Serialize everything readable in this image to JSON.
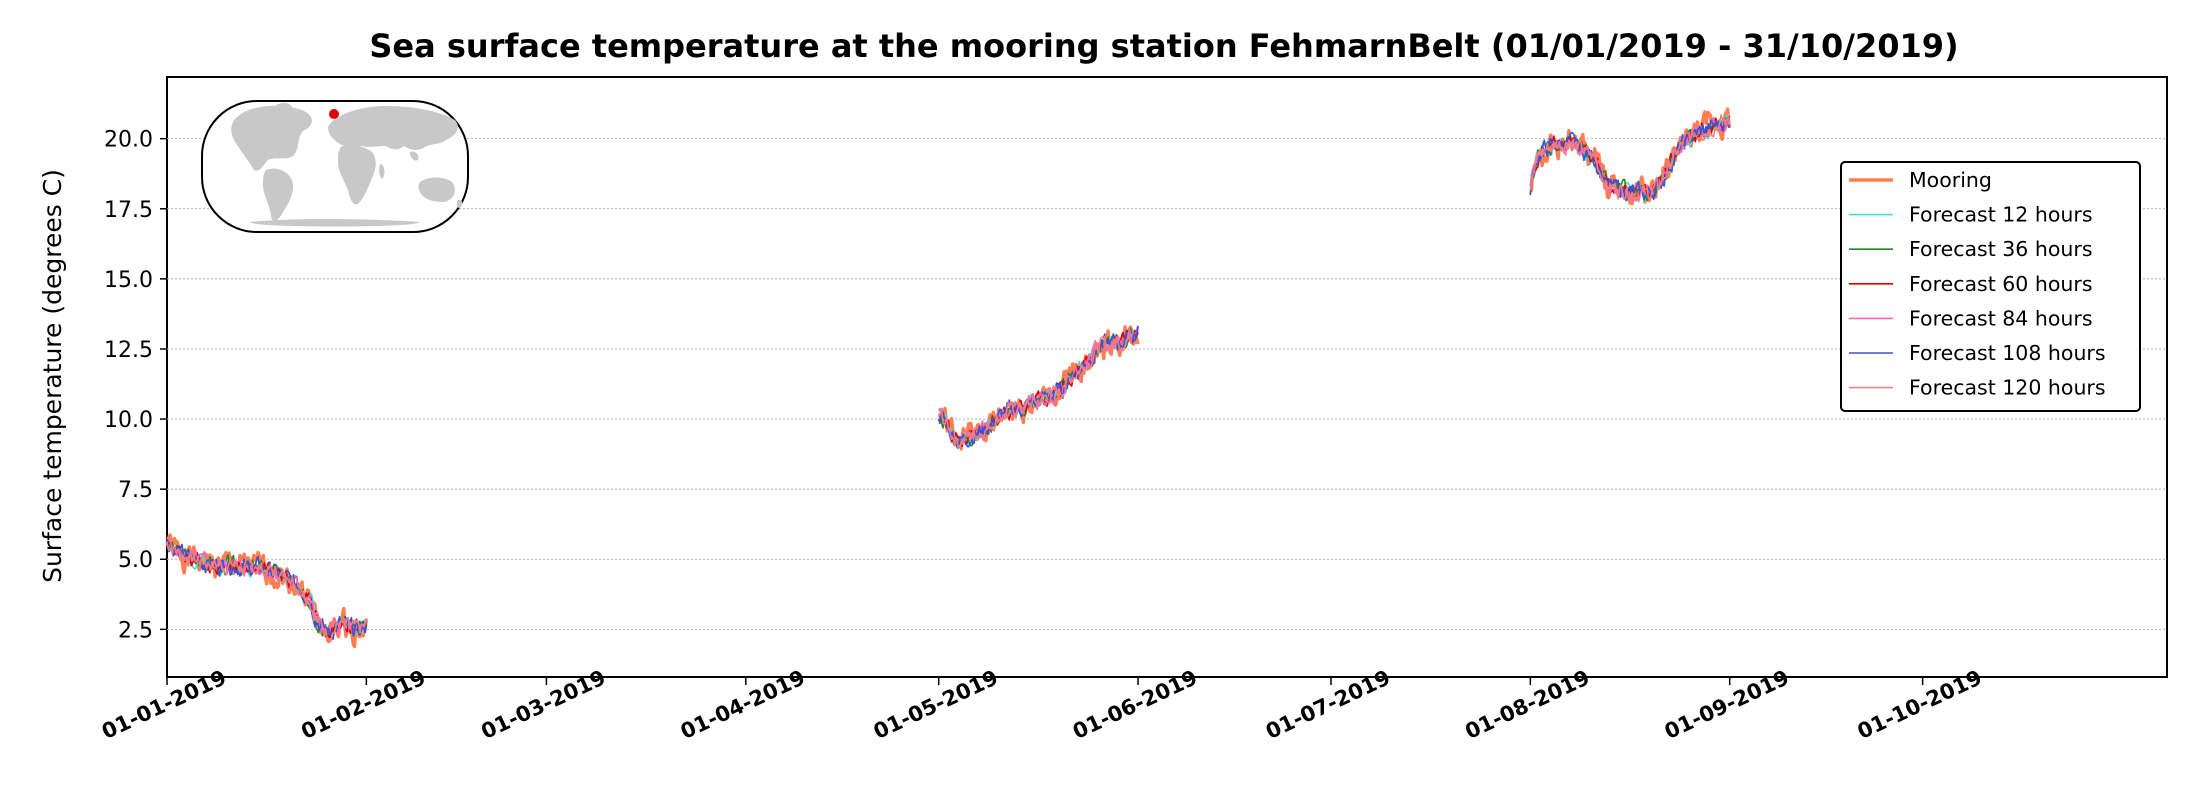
{
  "chart_data": {
    "type": "line",
    "title": "Sea surface temperature at the mooring station FehmarnBelt (01/01/2019 - 31/10/2019)",
    "xlabel": "",
    "ylabel": "Surface temperature (degrees C)",
    "xlim": [
      "2019-01-01",
      "2019-11-08"
    ],
    "ylim": [
      0.8,
      22.2
    ],
    "yticks": [
      2.5,
      5.0,
      7.5,
      10.0,
      12.5,
      15.0,
      17.5,
      20.0
    ],
    "ytick_labels": [
      "2.5",
      "5.0",
      "7.5",
      "10.0",
      "12.5",
      "15.0",
      "17.5",
      "20.0"
    ],
    "xticks": [
      "2019-01-01",
      "2019-02-01",
      "2019-03-01",
      "2019-04-01",
      "2019-05-01",
      "2019-06-01",
      "2019-07-01",
      "2019-08-01",
      "2019-09-01",
      "2019-10-01"
    ],
    "xtick_labels": [
      "01-01-2019",
      "01-02-2019",
      "01-03-2019",
      "01-04-2019",
      "01-05-2019",
      "01-06-2019",
      "01-07-2019",
      "01-08-2019",
      "01-09-2019",
      "01-10-2019"
    ],
    "grid": "horizontal dotted",
    "legend_position": "right",
    "segments": [
      {
        "dates": [
          "2019-01-01",
          "2019-01-03",
          "2019-01-05",
          "2019-01-07",
          "2019-01-09",
          "2019-01-11",
          "2019-01-13",
          "2019-01-15",
          "2019-01-17",
          "2019-01-19",
          "2019-01-21",
          "2019-01-23",
          "2019-01-24",
          "2019-01-25",
          "2019-01-26",
          "2019-01-27",
          "2019-01-28",
          "2019-01-29",
          "2019-01-30",
          "2019-01-31",
          "2019-02-01"
        ],
        "base": [
          5.6,
          5.2,
          5.0,
          4.9,
          4.8,
          4.8,
          4.7,
          4.7,
          4.6,
          4.4,
          4.1,
          3.7,
          3.0,
          2.6,
          2.4,
          2.5,
          2.7,
          2.6,
          2.5,
          2.5,
          2.6
        ]
      },
      {
        "dates": [
          "2019-05-01",
          "2019-05-02",
          "2019-05-03",
          "2019-05-04",
          "2019-05-06",
          "2019-05-08",
          "2019-05-10",
          "2019-05-12",
          "2019-05-14",
          "2019-05-16",
          "2019-05-18",
          "2019-05-20",
          "2019-05-22",
          "2019-05-24",
          "2019-05-26",
          "2019-05-28",
          "2019-05-30",
          "2019-06-01"
        ],
        "base": [
          10.2,
          9.9,
          9.5,
          9.2,
          9.4,
          9.6,
          10.0,
          10.3,
          10.4,
          10.6,
          10.8,
          11.0,
          11.6,
          12.0,
          12.6,
          12.7,
          12.8,
          13.1
        ]
      },
      {
        "dates": [
          "2019-08-01",
          "2019-08-02",
          "2019-08-03",
          "2019-08-05",
          "2019-08-07",
          "2019-08-09",
          "2019-08-11",
          "2019-08-12",
          "2019-08-13",
          "2019-08-15",
          "2019-08-17",
          "2019-08-19",
          "2019-08-21",
          "2019-08-23",
          "2019-08-25",
          "2019-08-27",
          "2019-08-29",
          "2019-08-31",
          "2019-09-01"
        ],
        "base": [
          18.2,
          19.3,
          19.6,
          19.8,
          19.9,
          19.6,
          19.3,
          18.8,
          18.3,
          18.2,
          18.1,
          18.0,
          18.3,
          19.2,
          19.9,
          20.2,
          20.4,
          20.6,
          20.6
        ]
      }
    ],
    "series": [
      {
        "name": "Mooring",
        "color": "#ff7f50",
        "width": 3.4,
        "amp": 0.38,
        "seed": 1
      },
      {
        "name": "Forecast 12 hours",
        "color": "#40e0d0",
        "width": 1.6,
        "amp": 0.22,
        "seed": 2
      },
      {
        "name": "Forecast 36 hours",
        "color": "#228b22",
        "width": 1.6,
        "amp": 0.22,
        "seed": 3
      },
      {
        "name": "Forecast 60 hours",
        "color": "#e00000",
        "width": 1.6,
        "amp": 0.22,
        "seed": 4
      },
      {
        "name": "Forecast 84 hours",
        "color": "#ff69b4",
        "width": 1.6,
        "amp": 0.24,
        "seed": 5
      },
      {
        "name": "Forecast 108 hours",
        "color": "#3f4fd8",
        "width": 1.6,
        "amp": 0.26,
        "seed": 6
      },
      {
        "name": "Forecast 120 hours",
        "color": "#f08080",
        "width": 1.6,
        "amp": 0.24,
        "seed": 7
      }
    ],
    "inset_map": {
      "description_icon": "world-map-icon",
      "marker_color": "#e00000",
      "land_color": "#c8c8c8"
    }
  }
}
